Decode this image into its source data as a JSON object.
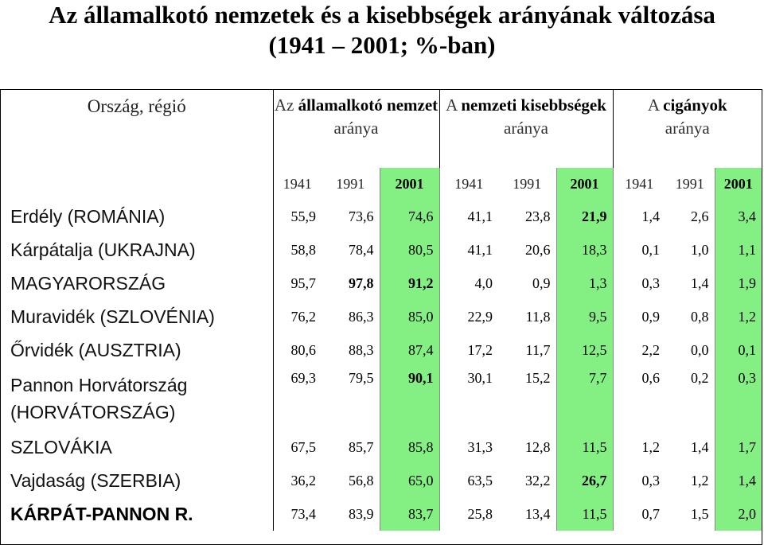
{
  "title": {
    "line1": "Az államalkotó nemzetek és a kisebbségek arányának változása",
    "line2": "(1941 – 2001; %-ban)"
  },
  "header": {
    "region": "Ország, régió",
    "group1": {
      "pre": "Az ",
      "bold": "államalkotó nemzet",
      "post": " aránya"
    },
    "group2": {
      "pre": "A ",
      "bold": "nemzeti kisebbségek",
      "post": " aránya"
    },
    "group3": {
      "pre": "A ",
      "bold": "cigányok",
      "post": " aránya"
    },
    "years": [
      "1941",
      "1991",
      "2001",
      "1941",
      "1991",
      "2001",
      "1941",
      "1991",
      "2001"
    ]
  },
  "rows": [
    {
      "name": "Erdély (ROMÁNIA)",
      "values": [
        "55,9",
        "73,6",
        "74,6",
        "41,1",
        "23,8",
        "21,9",
        "1,4",
        "2,6",
        "3,4"
      ]
    },
    {
      "name": "Kárpátalja (UKRAJNA)",
      "values": [
        "58,8",
        "78,4",
        "80,5",
        "41,1",
        "20,6",
        "18,3",
        "0,1",
        "1,0",
        "1,1"
      ]
    },
    {
      "name": "MAGYARORSZÁG",
      "values": [
        "95,7",
        "97,8",
        "91,2",
        "4,0",
        "0,9",
        "1,3",
        "0,3",
        "1,4",
        "1,9"
      ]
    },
    {
      "name": "Muravidék (SZLOVÉNIA)",
      "values": [
        "76,2",
        "86,3",
        "85,0",
        "22,9",
        "11,8",
        "9,5",
        "0,9",
        "0,8",
        "1,2"
      ]
    },
    {
      "name": "Őrvidék (AUSZTRIA)",
      "values": [
        "80,6",
        "88,3",
        "87,4",
        "17,2",
        "11,7",
        "12,5",
        "2,2",
        "0,0",
        "0,1"
      ]
    },
    {
      "name_line1": "Pannon Horvátország",
      "name_line2": "(HORVÁTORSZÁG)",
      "values": [
        "69,3",
        "79,5",
        "90,1",
        "30,1",
        "15,2",
        "7,7",
        "0,6",
        "0,2",
        "0,3"
      ]
    },
    {
      "name": "SZLOVÁKIA",
      "values": [
        "67,5",
        "85,7",
        "85,8",
        "31,3",
        "12,8",
        "11,5",
        "1,2",
        "1,4",
        "1,7"
      ]
    },
    {
      "name": "Vajdaság (SZERBIA)",
      "values": [
        "36,2",
        "56,8",
        "65,0",
        "63,5",
        "32,2",
        "26,7",
        "0,3",
        "1,2",
        "1,4"
      ]
    },
    {
      "name": "KÁRPÁT-PANNON R.",
      "values": [
        "73,4",
        "83,9",
        "83,7",
        "25,8",
        "13,4",
        "11,5",
        "0,7",
        "1,5",
        "2,0"
      ]
    }
  ],
  "colors": {
    "highlight": "#84f084",
    "background": "#ffffff"
  }
}
